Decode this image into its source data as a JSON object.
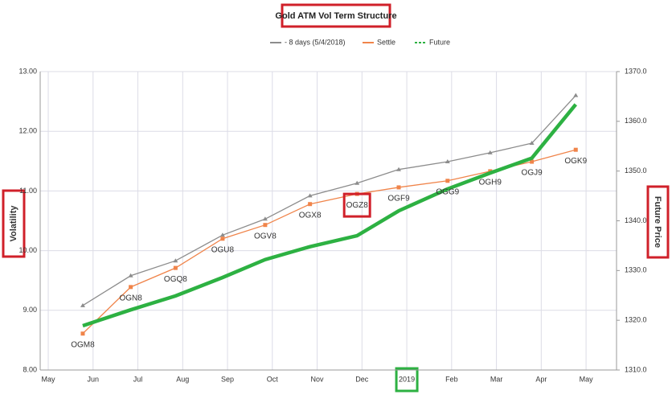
{
  "chart_data": {
    "type": "line",
    "title": "Gold ATM Vol Term Structure",
    "y_label": "Volatility",
    "y2_label": "Future Price",
    "x": [
      0.77,
      1.84,
      2.84,
      3.89,
      4.84,
      5.84,
      6.89,
      7.82,
      8.91,
      9.86,
      10.79,
      11.77
    ],
    "point_labels": [
      "OGM8",
      "OGN8",
      "OGQ8",
      "OGU8",
      "OGV8",
      "OGX8",
      "OGZ8",
      "OGF9",
      "OGG9",
      "OGH9",
      "OGJ9",
      "OGK9"
    ],
    "series": [
      {
        "name": "- 8 days (5/4/2018)",
        "color": "#8c8c8c",
        "values": [
          9.08,
          9.58,
          9.83,
          10.26,
          10.53,
          10.92,
          11.13,
          11.36,
          11.49,
          11.64,
          11.8,
          12.6
        ]
      },
      {
        "name": "Settle",
        "color": "#f0844a",
        "values": [
          8.61,
          9.39,
          9.71,
          10.2,
          10.43,
          10.78,
          10.95,
          11.06,
          11.17,
          11.33,
          11.49,
          11.69
        ]
      },
      {
        "name": "Future",
        "color": "#2db142",
        "axis": "y2",
        "values": [
          1318.9,
          1322.1,
          1324.9,
          1328.6,
          1332.2,
          1334.8,
          1337.0,
          1342.0,
          1346.4,
          1349.6,
          1352.6,
          1363.4
        ]
      }
    ],
    "xlim": [
      -0.18,
      12.68
    ],
    "xticks": [
      {
        "value": 0,
        "label": "May"
      },
      {
        "value": 1,
        "label": "Jun"
      },
      {
        "value": 2,
        "label": "Jul"
      },
      {
        "value": 3,
        "label": "Aug"
      },
      {
        "value": 4,
        "label": "Sep"
      },
      {
        "value": 5,
        "label": "Oct"
      },
      {
        "value": 6,
        "label": "Nov"
      },
      {
        "value": 7,
        "label": "Dec"
      },
      {
        "value": 8,
        "label": "2019"
      },
      {
        "value": 9,
        "label": "Feb"
      },
      {
        "value": 10,
        "label": "Mar"
      },
      {
        "value": 11,
        "label": "Apr"
      },
      {
        "value": 12,
        "label": "May"
      }
    ],
    "ylim": [
      8,
      13
    ],
    "yticks": [
      {
        "value": 8,
        "label": "8.00"
      },
      {
        "value": 9,
        "label": "9.00"
      },
      {
        "value": 10,
        "label": "10.00"
      },
      {
        "value": 11,
        "label": "11.00"
      },
      {
        "value": 12,
        "label": "12.00"
      },
      {
        "value": 13,
        "label": "13.00"
      }
    ],
    "y2lim": [
      1310,
      1370
    ],
    "y2ticks": [
      {
        "value": 1310,
        "label": "1310.0"
      },
      {
        "value": 1320,
        "label": "1320.0"
      },
      {
        "value": 1330,
        "label": "1330.0"
      },
      {
        "value": 1340,
        "label": "1340.0"
      },
      {
        "value": 1350,
        "label": "1350.0"
      },
      {
        "value": 1360,
        "label": "1360.0"
      },
      {
        "value": 1370,
        "label": "1370.0"
      }
    ],
    "grid": true
  }
}
